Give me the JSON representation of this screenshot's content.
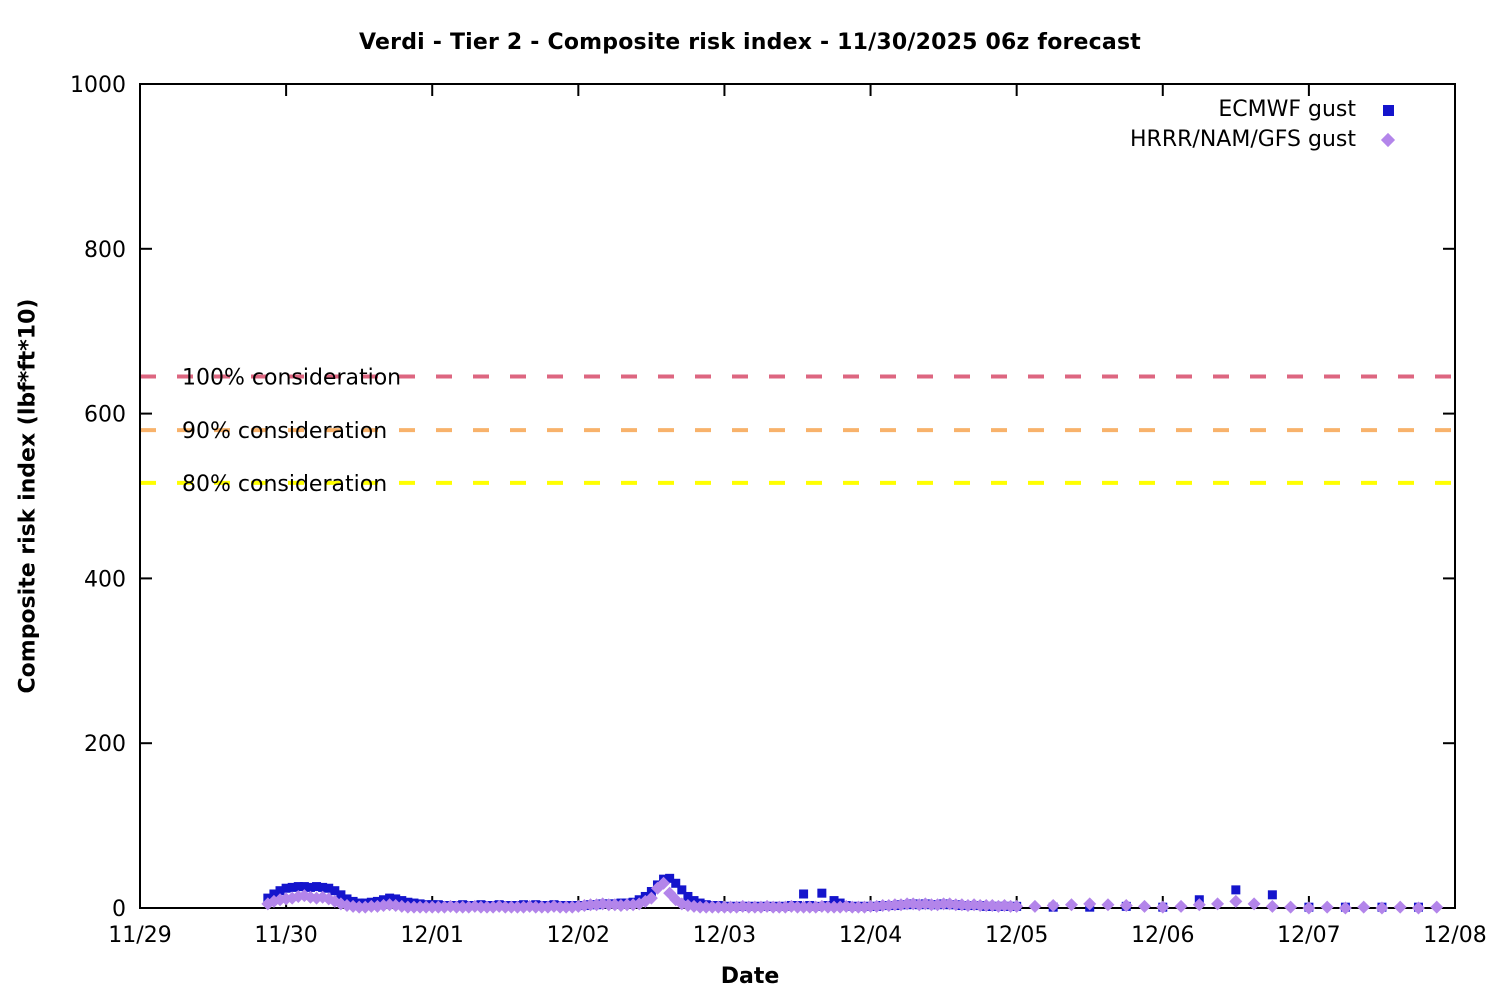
{
  "chart_data": {
    "type": "scatter",
    "title": "Verdi - Tier 2 - Composite risk index - 11/30/2025 06z forecast",
    "xlabel": "Date",
    "ylabel": "Composite risk index (lbf*ft*10)",
    "grid": false,
    "legend_position": "top-right-inside",
    "x_axis": {
      "tick_labels": [
        "11/29",
        "11/30",
        "12/01",
        "12/02",
        "12/03",
        "12/04",
        "12/05",
        "12/06",
        "12/07",
        "12/08"
      ],
      "days_span": 9,
      "x_unit": "hours since 11/29 00:00"
    },
    "y_axis": {
      "min": 0,
      "max": 1000,
      "ticks": [
        0,
        200,
        400,
        600,
        800,
        1000
      ]
    },
    "thresholds": [
      {
        "label": "100% consideration",
        "value": 645,
        "color": "#dd6680"
      },
      {
        "label": "90% consideration",
        "value": 580,
        "color": "#f8b26b"
      },
      {
        "label": "80% consideration",
        "value": 516,
        "color": "#ffff00"
      }
    ],
    "series": [
      {
        "name": "ECMWF gust",
        "marker": "square",
        "color": "#1414cc",
        "segments": [
          {
            "start_hour": 21,
            "step_hours": 1,
            "values": [
              12,
              17,
              21,
              24,
              25,
              26,
              26,
              25,
              26,
              25,
              24,
              21,
              16,
              11,
              8,
              6,
              6,
              7,
              8,
              10,
              12,
              11,
              9,
              7,
              6,
              5,
              4,
              4,
              4,
              3,
              3,
              3,
              4,
              3,
              3,
              4,
              3,
              3,
              4,
              3,
              3,
              3,
              4,
              3,
              4,
              3,
              3,
              4,
              3,
              3,
              3,
              3,
              3,
              4,
              4,
              5,
              5,
              5,
              6,
              6,
              7,
              10,
              14,
              20,
              28,
              35,
              36,
              30,
              22,
              14,
              9,
              6,
              4,
              3,
              3,
              2,
              2,
              2,
              2,
              2,
              2,
              2,
              2,
              2,
              2,
              2,
              3,
              3,
              17,
              3,
              2,
              18,
              3,
              9,
              6,
              3,
              2,
              2,
              2,
              2,
              2,
              3,
              3,
              3,
              4,
              4,
              5,
              4,
              5,
              4,
              4,
              5,
              4,
              4,
              3,
              3,
              3,
              3,
              2,
              2,
              2,
              2,
              2,
              2
            ]
          },
          {
            "start_hour": 150,
            "step_hours": 6,
            "values": [
              1,
              1,
              2,
              1,
              10,
              22,
              16,
              1,
              1,
              1,
              1
            ]
          }
        ]
      },
      {
        "name": "HRRR/NAM/GFS gust",
        "marker": "diamond",
        "color": "#b385ea",
        "segments": [
          {
            "start_hour": 21,
            "step_hours": 1,
            "values": [
              5,
              8,
              10,
              11,
              12,
              14,
              15,
              13,
              12,
              13,
              11,
              8,
              5,
              3,
              2,
              1,
              1,
              2,
              2,
              3,
              4,
              3,
              2,
              1,
              1,
              1,
              1,
              1,
              1,
              1,
              2,
              1,
              1,
              1,
              2,
              1,
              1,
              1,
              2,
              1,
              1,
              1,
              1,
              2,
              1,
              1,
              1,
              2,
              1,
              1,
              1,
              2,
              3,
              4,
              4,
              5,
              4,
              4,
              3,
              4,
              4,
              5,
              8,
              12,
              24,
              30,
              18,
              10,
              5,
              3,
              2,
              1,
              1,
              1,
              1,
              1,
              1,
              1,
              2,
              1,
              1,
              1,
              2,
              1,
              1,
              1,
              2,
              1,
              1,
              1,
              1,
              2,
              1,
              1,
              1,
              2,
              1,
              1,
              1,
              2,
              2,
              3,
              3,
              4,
              4,
              5,
              5,
              4,
              5,
              4,
              4,
              5,
              5,
              4,
              4,
              3,
              4,
              3,
              3,
              3,
              2,
              3,
              2,
              2
            ]
          },
          {
            "start_hour": 147,
            "step_hours": 3,
            "values": [
              2,
              3,
              4,
              5,
              4,
              3,
              2,
              1,
              2,
              4,
              5,
              8,
              5,
              2,
              1,
              0,
              1,
              0,
              1,
              0,
              1,
              0,
              1
            ]
          }
        ]
      }
    ]
  }
}
